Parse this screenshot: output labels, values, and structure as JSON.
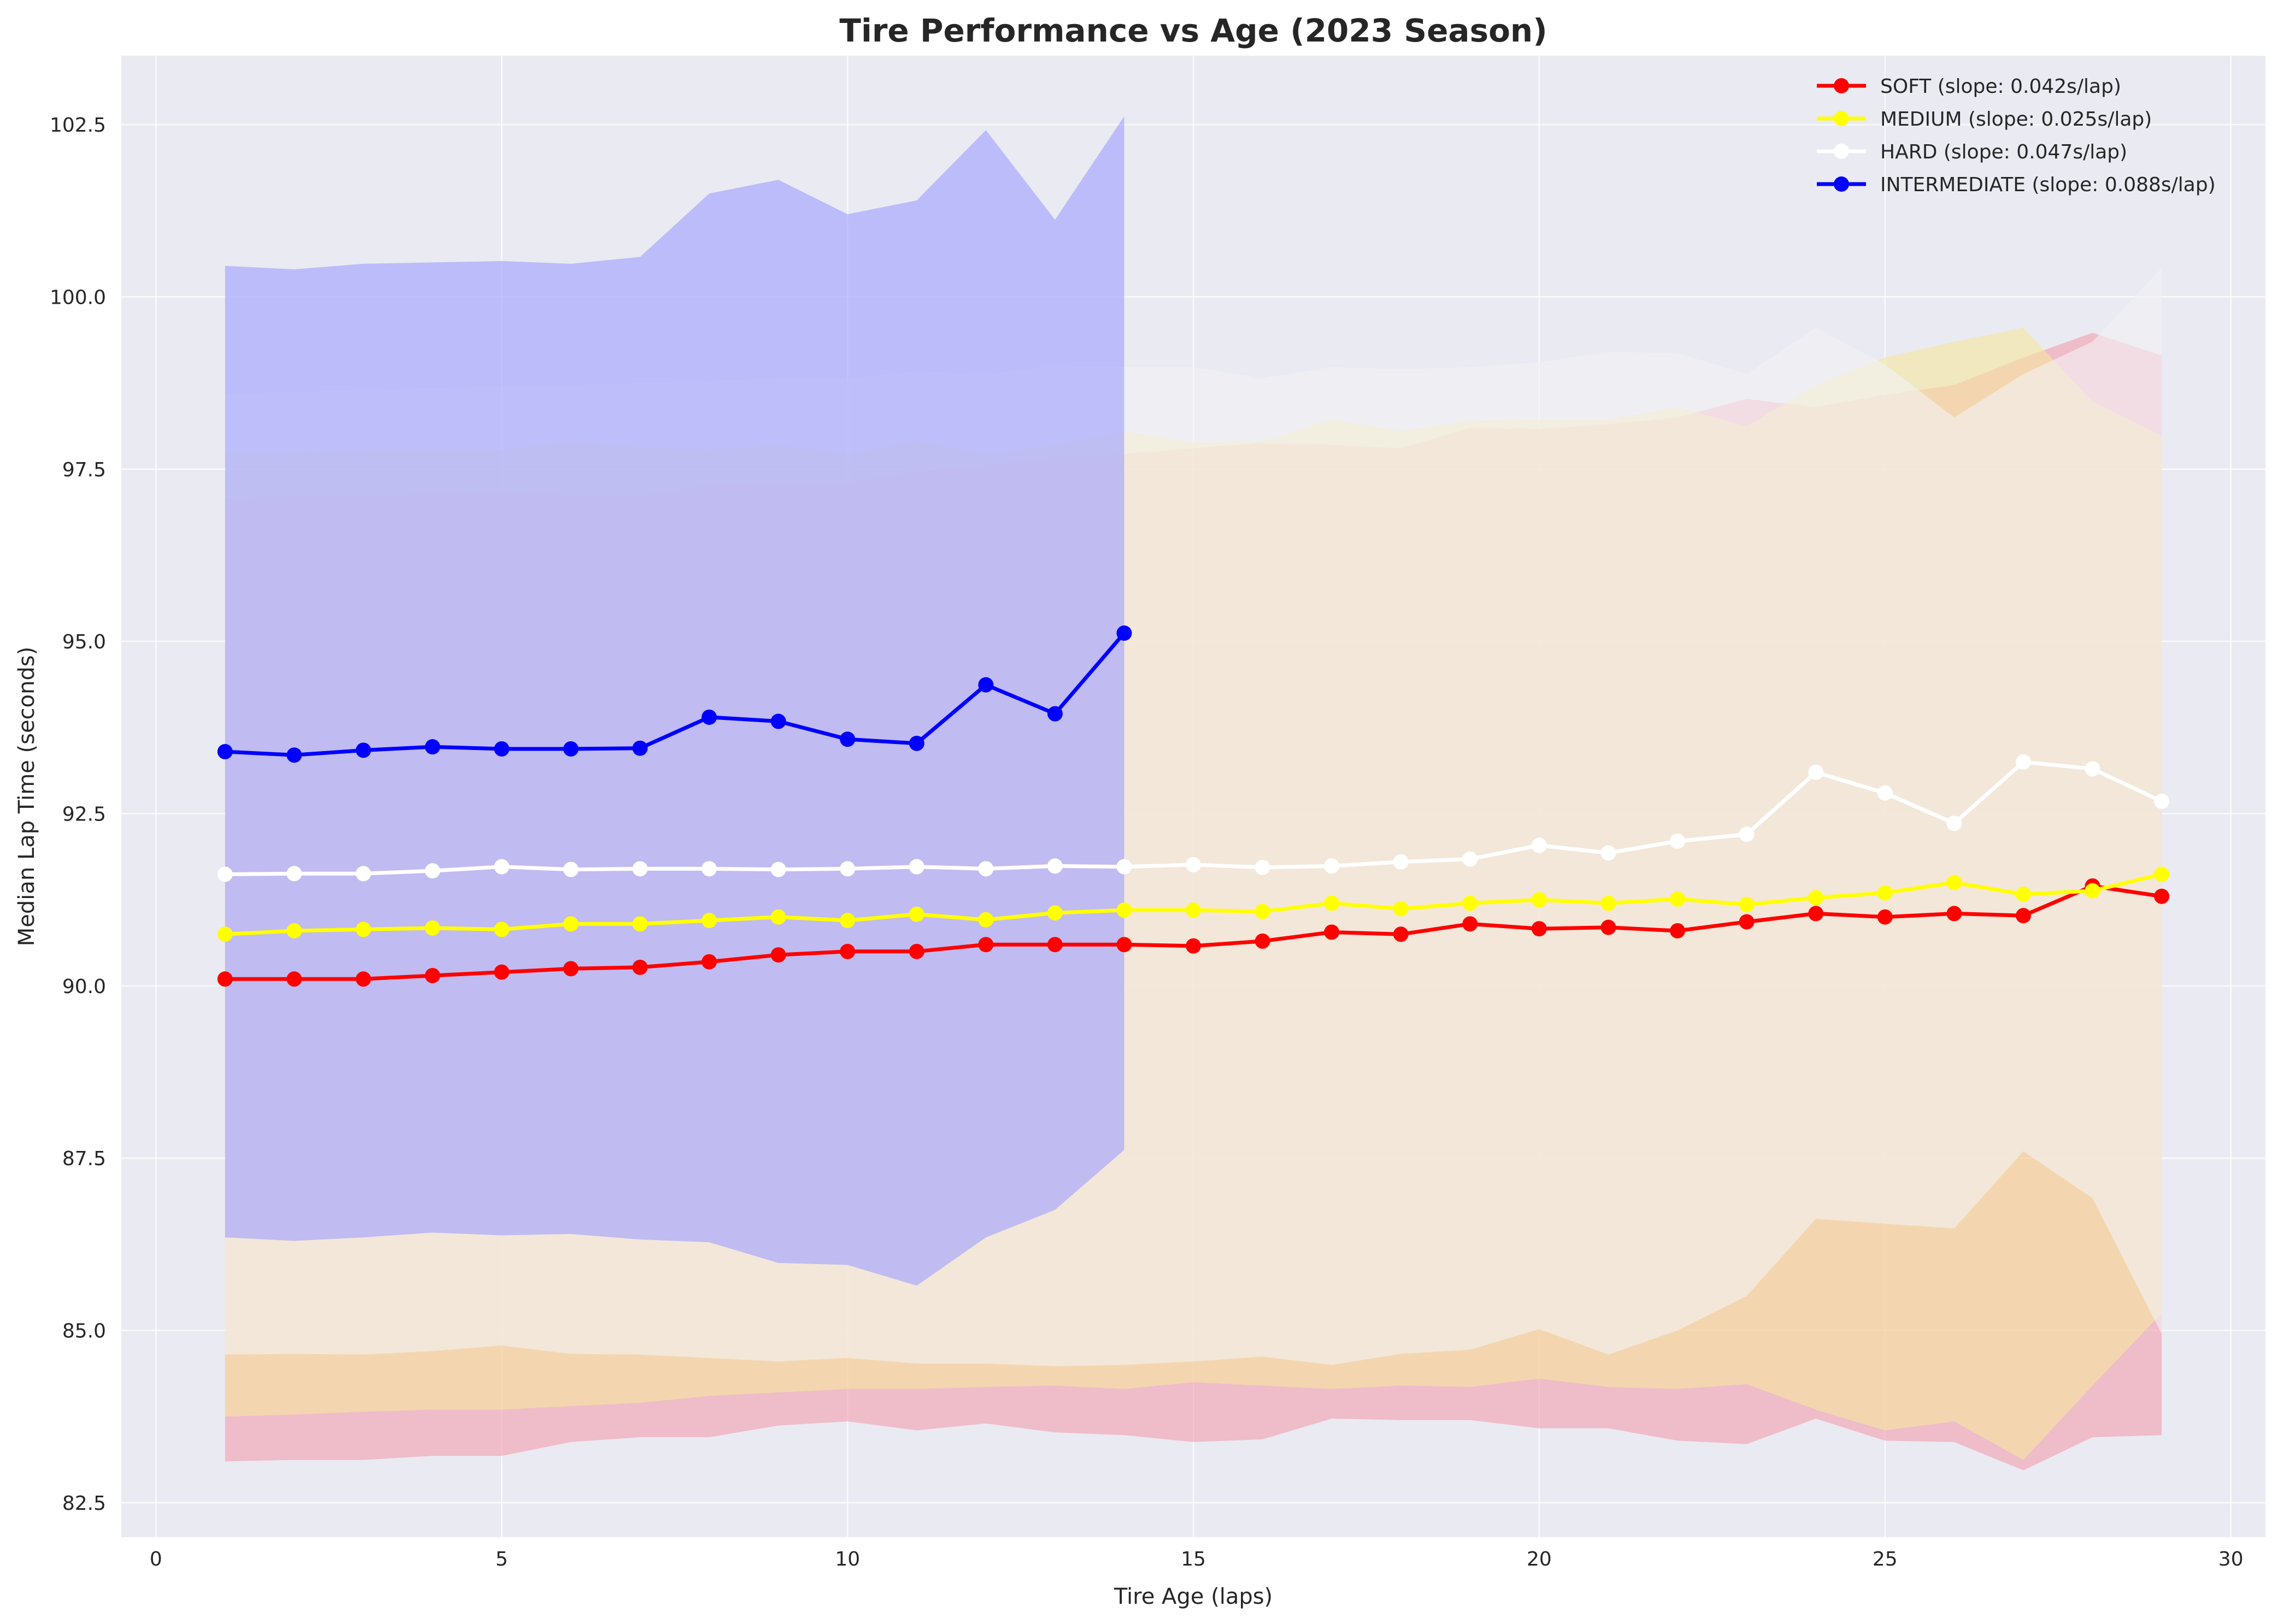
{
  "chart_data": {
    "type": "line",
    "title": "Tire Performance vs Age (2023 Season)",
    "xlabel": "Tire Age (laps)",
    "ylabel": "Median Lap Time (seconds)",
    "xlim": [
      -0.5,
      30.5
    ],
    "ylim": [
      82.0,
      103.5
    ],
    "xticks": [
      0,
      5,
      10,
      15,
      20,
      25,
      30
    ],
    "xtick_labels": [
      "0",
      "5",
      "10",
      "15",
      "20",
      "25",
      "30"
    ],
    "yticks": [
      82.5,
      85.0,
      87.5,
      90.0,
      92.5,
      95.0,
      97.5,
      100.0,
      102.5
    ],
    "ytick_labels": [
      "82.5",
      "85.0",
      "87.5",
      "90.0",
      "92.5",
      "95.0",
      "97.5",
      "100.0",
      "102.5"
    ],
    "grid": true,
    "legend_position": "top-right",
    "background_color": "#eaeaf2",
    "series": [
      {
        "name": "SOFT (slope: 0.042s/lap)",
        "color": "#ff0000",
        "band_color": "#f2a0b0",
        "x": [
          1,
          2,
          3,
          4,
          5,
          6,
          7,
          8,
          9,
          10,
          11,
          12,
          13,
          14,
          15,
          16,
          17,
          18,
          19,
          20,
          21,
          22,
          23,
          24,
          25,
          26,
          27,
          28,
          29
        ],
        "y": [
          90.1,
          90.1,
          90.1,
          90.15,
          90.2,
          90.25,
          90.27,
          90.35,
          90.45,
          90.5,
          90.5,
          90.6,
          90.6,
          90.6,
          90.58,
          90.65,
          90.78,
          90.75,
          90.9,
          90.83,
          90.85,
          90.8,
          90.93,
          91.05,
          91.0,
          91.05,
          91.02,
          91.45,
          91.3
        ],
        "band_lower": [
          83.1,
          83.12,
          83.12,
          83.18,
          83.18,
          83.38,
          83.45,
          83.45,
          83.62,
          83.68,
          83.55,
          83.65,
          83.52,
          83.48,
          83.38,
          83.42,
          83.72,
          83.7,
          83.7,
          83.58,
          83.58,
          83.4,
          83.35,
          83.72,
          83.4,
          83.38,
          82.97,
          83.45,
          83.48
        ],
        "band_upper": [
          97.08,
          97.1,
          97.12,
          97.14,
          97.2,
          97.12,
          97.1,
          97.28,
          97.32,
          97.3,
          97.48,
          97.55,
          97.68,
          97.72,
          97.8,
          97.88,
          97.85,
          97.8,
          98.1,
          98.08,
          98.15,
          98.25,
          98.52,
          98.4,
          98.58,
          98.72,
          99.12,
          99.48,
          99.15
        ]
      },
      {
        "name": "MEDIUM (slope: 0.025s/lap)",
        "color": "#ffff00",
        "band_color": "#f5e6a0",
        "x": [
          1,
          2,
          3,
          4,
          5,
          6,
          7,
          8,
          9,
          10,
          11,
          12,
          13,
          14,
          15,
          16,
          17,
          18,
          19,
          20,
          21,
          22,
          23,
          24,
          25,
          26,
          27,
          28,
          29
        ],
        "y": [
          90.75,
          90.8,
          90.82,
          90.84,
          90.82,
          90.9,
          90.9,
          90.95,
          91.0,
          90.95,
          91.04,
          90.96,
          91.06,
          91.1,
          91.1,
          91.08,
          91.2,
          91.12,
          91.2,
          91.25,
          91.2,
          91.26,
          91.18,
          91.28,
          91.35,
          91.5,
          91.33,
          91.38,
          91.62
        ],
        "band_lower": [
          83.75,
          83.78,
          83.82,
          83.85,
          83.85,
          83.9,
          83.95,
          84.05,
          84.1,
          84.15,
          84.15,
          84.18,
          84.2,
          84.15,
          84.25,
          84.2,
          84.15,
          84.2,
          84.18,
          84.3,
          84.18,
          84.15,
          84.22,
          83.85,
          83.55,
          83.68,
          83.12,
          84.2,
          85.25
        ],
        "band_upper": [
          97.72,
          97.75,
          97.78,
          97.78,
          97.78,
          97.9,
          97.82,
          97.78,
          97.85,
          97.72,
          97.92,
          97.72,
          97.85,
          98.05,
          97.88,
          97.9,
          98.22,
          98.05,
          98.2,
          98.22,
          98.22,
          98.4,
          98.12,
          98.72,
          99.12,
          99.35,
          99.55,
          98.48,
          97.98
        ]
      },
      {
        "name": "HARD (slope: 0.047s/lap)",
        "color": "#ffffff",
        "band_color": "#f2f2f4",
        "x": [
          1,
          2,
          3,
          4,
          5,
          6,
          7,
          8,
          9,
          10,
          11,
          12,
          13,
          14,
          15,
          16,
          17,
          18,
          19,
          20,
          21,
          22,
          23,
          24,
          25,
          26,
          27,
          28,
          29
        ],
        "y": [
          91.62,
          91.63,
          91.63,
          91.67,
          91.73,
          91.69,
          91.7,
          91.7,
          91.69,
          91.7,
          91.73,
          91.7,
          91.74,
          91.73,
          91.76,
          91.72,
          91.74,
          91.8,
          91.84,
          92.04,
          91.93,
          92.1,
          92.2,
          93.1,
          92.8,
          92.36,
          93.25,
          93.15,
          92.68
        ],
        "band_lower": [
          84.65,
          84.66,
          84.65,
          84.7,
          84.78,
          84.66,
          84.65,
          84.6,
          84.55,
          84.6,
          84.52,
          84.52,
          84.48,
          84.5,
          84.55,
          84.62,
          84.5,
          84.66,
          84.72,
          85.02,
          84.65,
          85.0,
          85.5,
          86.62,
          86.55,
          86.48,
          87.6,
          86.92,
          84.95
        ],
        "band_upper": [
          98.6,
          98.62,
          98.65,
          98.68,
          98.7,
          98.72,
          98.75,
          98.78,
          98.82,
          98.82,
          98.92,
          98.88,
          99.0,
          98.98,
          98.98,
          98.82,
          98.98,
          98.95,
          98.98,
          99.05,
          99.2,
          99.18,
          98.88,
          99.55,
          99.02,
          98.25,
          98.88,
          99.35,
          100.42
        ]
      },
      {
        "name": "INTERMEDIATE (slope: 0.088s/lap)",
        "color": "#0000ff",
        "band_color": "#a0a0ff",
        "x": [
          1,
          2,
          3,
          4,
          5,
          6,
          7,
          8,
          9,
          10,
          11,
          12,
          13,
          14
        ],
        "y": [
          93.4,
          93.35,
          93.42,
          93.47,
          93.44,
          93.44,
          93.45,
          93.9,
          93.84,
          93.58,
          93.52,
          94.37,
          93.95,
          95.12
        ],
        "band_lower": [
          86.35,
          86.3,
          86.35,
          86.42,
          86.38,
          86.4,
          86.32,
          86.28,
          85.98,
          85.95,
          85.65,
          86.35,
          86.75,
          87.62
        ],
        "band_upper": [
          100.45,
          100.4,
          100.48,
          100.5,
          100.52,
          100.48,
          100.58,
          101.5,
          101.7,
          101.2,
          101.4,
          102.42,
          101.12,
          102.62
        ]
      }
    ]
  }
}
